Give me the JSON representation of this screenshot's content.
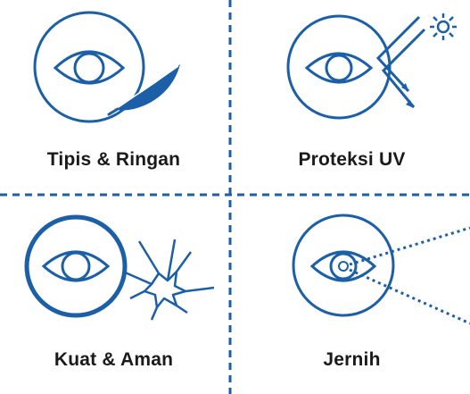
{
  "features": [
    {
      "label": "Tipis & Ringan",
      "icon": "eye-with-feather-icon"
    },
    {
      "label": "Proteksi UV",
      "icon": "eye-with-uv-deflection-icon"
    },
    {
      "label": "Kuat & Aman",
      "icon": "eye-with-crack-resistance-icon"
    },
    {
      "label": "Jernih",
      "icon": "eye-with-clear-vision-icon"
    }
  ],
  "colors": {
    "accent": "#1a5fa8",
    "divider": "#1a5fa8",
    "text": "#1a1a1a",
    "background": "#ffffff"
  }
}
